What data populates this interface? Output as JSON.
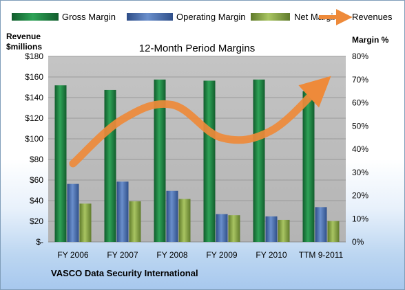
{
  "company": "VASCO Data Security International",
  "colors": {
    "gross": "#1f8a45",
    "operating": "#4f74b5",
    "net": "#8fae4a",
    "revenues": "#ee8a3a",
    "plot_bg": "#bdbdbd"
  },
  "legend": {
    "gross": "Gross Margin",
    "operating": "Operating Margin",
    "net": "Net Margin",
    "revenues": "Revenues"
  },
  "axes": {
    "left_title_line1": "Revenue",
    "left_title_line2": "$millions",
    "right_title": "Margin %"
  },
  "chart_data": {
    "type": "bar",
    "title": "12-Month Period Margins",
    "categories": [
      "FY 2006",
      "FY 2007",
      "FY 2008",
      "FY 2009",
      "FY 2010",
      "TTM 9-2011"
    ],
    "series": [
      {
        "name": "Gross Margin",
        "axis": "right",
        "values": [
          67.5,
          65.5,
          70,
          69.5,
          70,
          65
        ]
      },
      {
        "name": "Operating Margin",
        "axis": "right",
        "values": [
          25,
          26,
          22,
          12,
          11,
          15
        ]
      },
      {
        "name": "Net Margin",
        "axis": "right",
        "values": [
          16.5,
          17.5,
          18.5,
          11.5,
          9.5,
          9
        ]
      },
      {
        "name": "Revenues",
        "type": "line",
        "axis": "left",
        "values": [
          76,
          119,
          133,
          101,
          108,
          152
        ]
      }
    ],
    "y_left": {
      "range": [
        0,
        180
      ],
      "ticks": [
        0,
        20,
        40,
        60,
        80,
        100,
        120,
        140,
        160,
        180
      ],
      "tick_labels": [
        "$-",
        "$20",
        "$40",
        "$60",
        "$80",
        "$100",
        "$120",
        "$140",
        "$160",
        "$180"
      ]
    },
    "y_right": {
      "range": [
        0,
        80
      ],
      "ticks": [
        0,
        10,
        20,
        30,
        40,
        50,
        60,
        70,
        80
      ],
      "tick_labels": [
        "0%",
        "10%",
        "20%",
        "30%",
        "40%",
        "50%",
        "60%",
        "70%",
        "80%"
      ]
    },
    "grid": true,
    "legend_position": "top"
  }
}
